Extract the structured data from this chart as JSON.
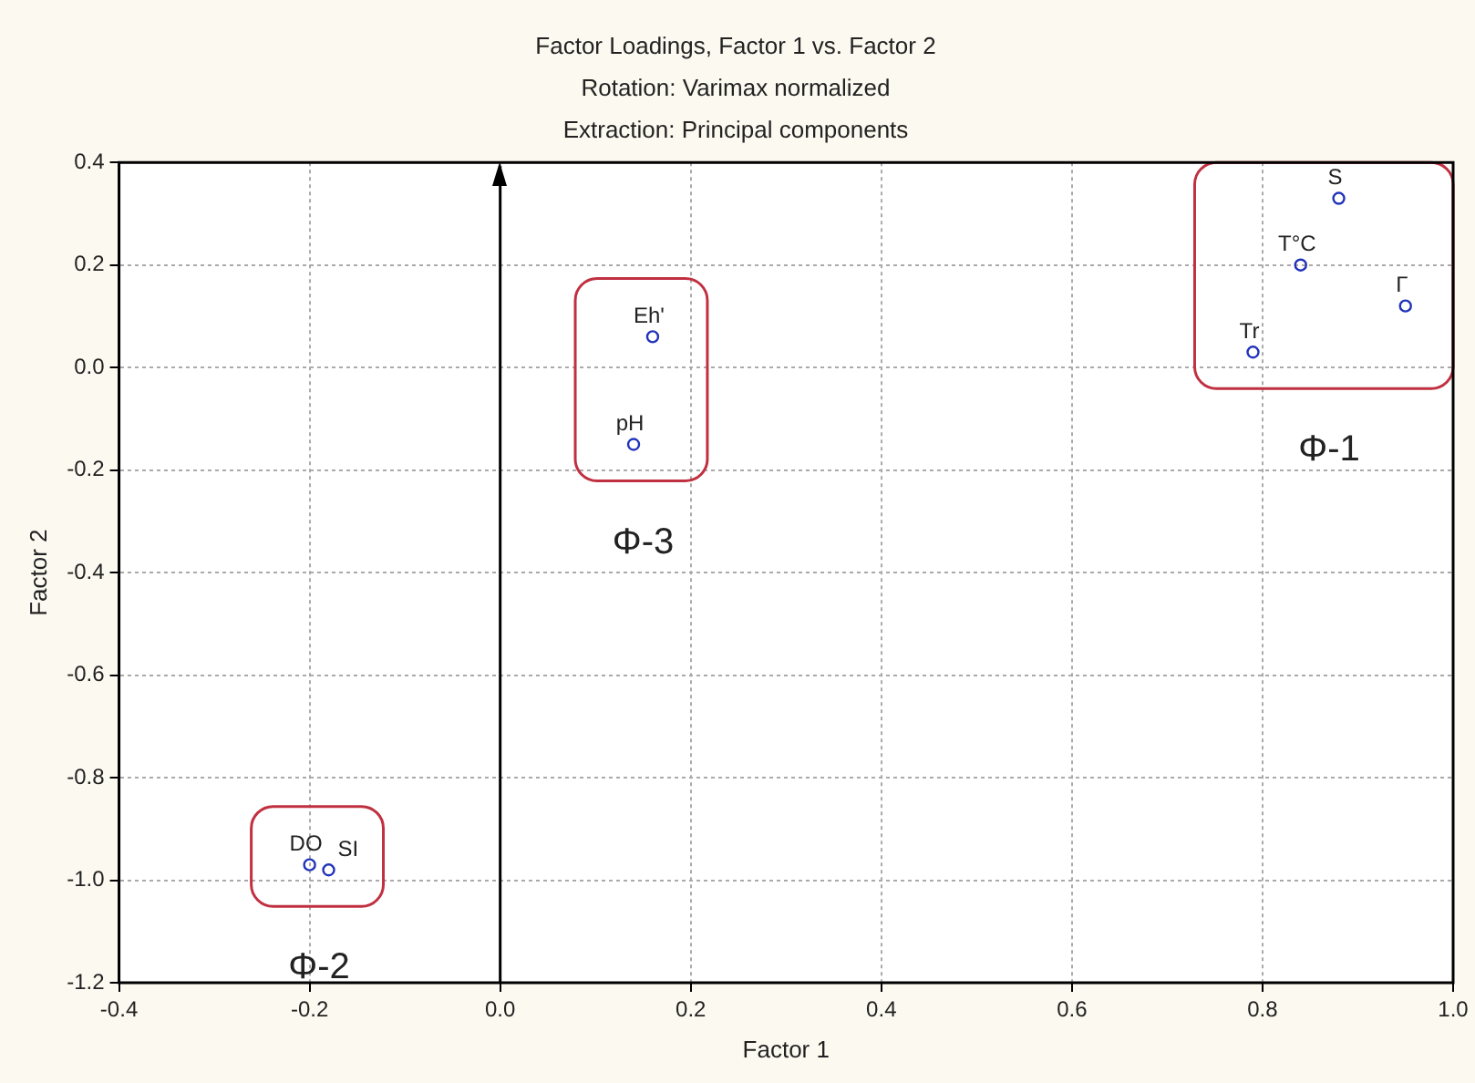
{
  "chart_data": {
    "type": "scatter",
    "title": "Factor Loadings, Factor 1 vs. Factor 2",
    "subtitle": "Rotation: Varimax normalized\nExtraction: Principal components",
    "xlabel": "Factor 1",
    "ylabel": "Factor 2",
    "xlim": [
      -0.4,
      1.0
    ],
    "xticks": [
      -0.4,
      -0.2,
      {
        "value": 0,
        "label": "0.0"
      },
      0.2,
      0.4,
      0.6,
      0.8,
      {
        "value": 1,
        "label": "1.0"
      }
    ],
    "ylim": [
      -1.2,
      0.4
    ],
    "yticks": [
      -1.2,
      {
        "value": -1,
        "label": "-1.0"
      },
      -0.8,
      -0.6,
      -0.4,
      -0.2,
      {
        "value": 0,
        "label": "0.0"
      },
      0.2,
      0.4
    ],
    "grid": true,
    "legend": false,
    "marker": "circle",
    "ref_lines": [
      {
        "axis": "x",
        "value": 0,
        "color": "#000000"
      }
    ],
    "series": [
      {
        "name": "S",
        "color": "#2233bb",
        "x": [
          0.88
        ],
        "values": [
          0.33
        ]
      },
      {
        "name": "T°C",
        "color": "#2233bb",
        "x": [
          0.84
        ],
        "values": [
          0.2
        ]
      },
      {
        "name": "Γ",
        "color": "#2233bb",
        "x": [
          0.95
        ],
        "values": [
          0.12
        ]
      },
      {
        "name": "Tr",
        "color": "#2233bb",
        "x": [
          0.79
        ],
        "values": [
          0.03
        ]
      },
      {
        "name": "Eh'",
        "color": "#2233bb",
        "x": [
          0.16
        ],
        "values": [
          0.06
        ]
      },
      {
        "name": "pH",
        "color": "#2233bb",
        "x": [
          0.14
        ],
        "values": [
          -0.15
        ]
      },
      {
        "name": "DO",
        "color": "#2233bb",
        "x": [
          -0.2
        ],
        "values": [
          -0.97
        ]
      },
      {
        "name": "SI",
        "color": "#2233bb",
        "x": [
          -0.18
        ],
        "values": [
          -0.98
        ]
      }
    ],
    "annotations": [
      "Φ-1",
      "Φ-3",
      "Φ-2"
    ]
  }
}
